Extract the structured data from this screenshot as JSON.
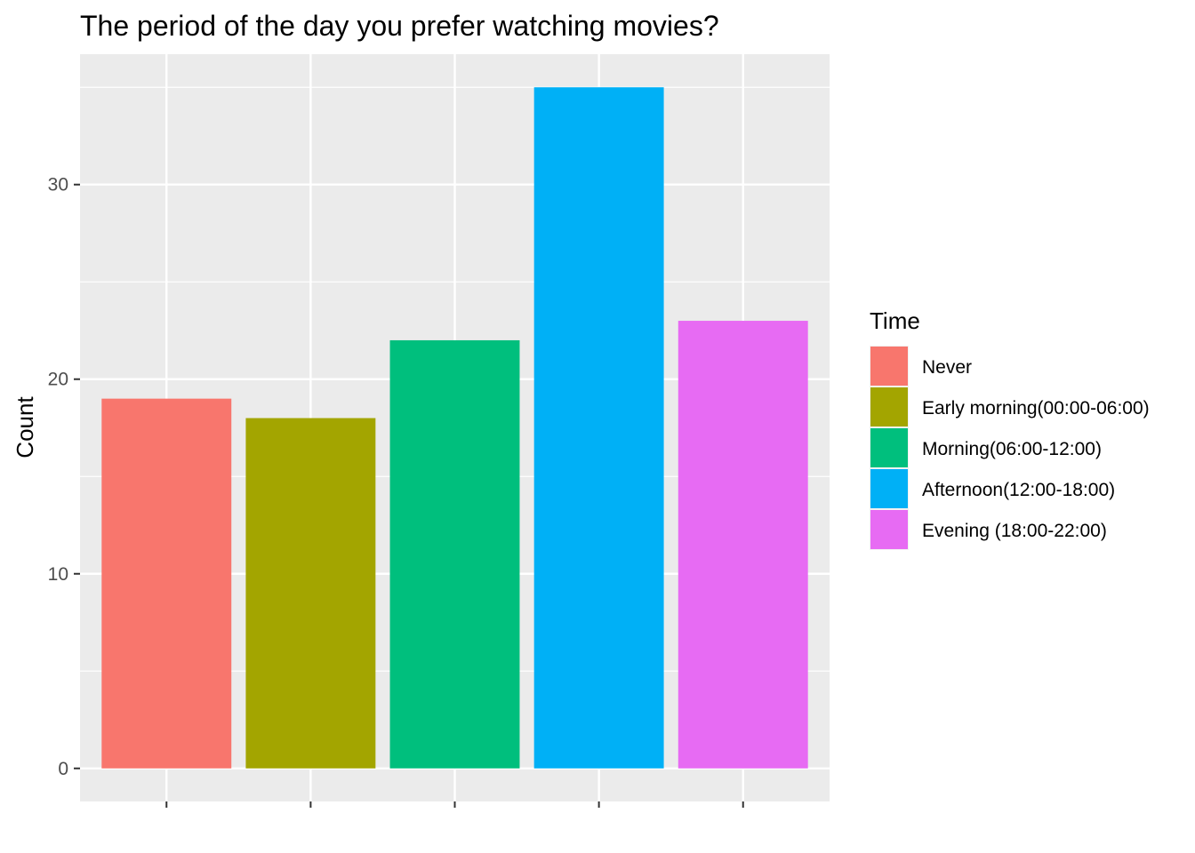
{
  "chart_data": {
    "type": "bar",
    "title": "The period of the day you prefer watching movies?",
    "xlabel": "",
    "ylabel": "Count",
    "ylim": [
      -1.7,
      36.7
    ],
    "yticks": [
      0,
      10,
      20,
      30
    ],
    "categories": [
      "Never",
      "Early morning(00:00-06:00)",
      "Morning(06:00-12:00)",
      "Afternoon(12:00-18:00)",
      "Evening (18:00-22:00)"
    ],
    "values": [
      19,
      18,
      22,
      35,
      23
    ],
    "colors": [
      "#F8766D",
      "#A3A500",
      "#00BF7D",
      "#00B0F6",
      "#E76BF3"
    ],
    "grid": true,
    "legend": {
      "title": "Time",
      "placement": "right"
    }
  }
}
